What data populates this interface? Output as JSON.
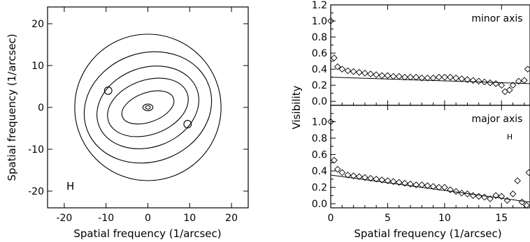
{
  "chart_data": [
    {
      "type": "contour",
      "xlabel": "Spatial frequency (1/arcsec)",
      "ylabel": "Spatial frequency (1/arcsec)",
      "xlim": [
        -24,
        24
      ],
      "ylim": [
        -24,
        24
      ],
      "xticks": [
        -20,
        -10,
        0,
        10,
        20
      ],
      "yticks": [
        -20,
        -10,
        0,
        10,
        20
      ],
      "annotation": "H",
      "contours": [
        {
          "shape": "ellipse",
          "cx": 0,
          "cy": 0,
          "rx": 17.5,
          "ry": 17.5,
          "angle_deg": 0
        },
        {
          "shape": "ellipse",
          "cx": 0,
          "cy": 0,
          "rx": 15.5,
          "ry": 13.0,
          "angle_deg": -20
        },
        {
          "shape": "ellipse",
          "cx": 0,
          "cy": 0,
          "rx": 12.5,
          "ry": 9.5,
          "angle_deg": -20
        },
        {
          "shape": "ellipse",
          "cx": 0,
          "cy": 0,
          "rx": 10.0,
          "ry": 6.5,
          "angle_deg": -20
        },
        {
          "shape": "ellipse",
          "cx": 0,
          "cy": 0,
          "rx": 6.5,
          "ry": 3.5,
          "angle_deg": -20
        },
        {
          "shape": "ellipse",
          "cx": 0,
          "cy": 0,
          "rx": 1.2,
          "ry": 0.8,
          "angle_deg": 0
        },
        {
          "shape": "ellipse",
          "cx": 0,
          "cy": 0,
          "rx": 0.6,
          "ry": 0.4,
          "angle_deg": 0
        },
        {
          "shape": "ellipse",
          "cx": -9.5,
          "cy": 4,
          "rx": 0.9,
          "ry": 0.9,
          "angle_deg": 0
        },
        {
          "shape": "ellipse",
          "cx": 9.5,
          "cy": -4,
          "rx": 0.9,
          "ry": 0.9,
          "angle_deg": 0
        }
      ]
    },
    {
      "type": "scatter",
      "title": "minor axis",
      "ylabel": "Visibility",
      "xlim": [
        0,
        17.5
      ],
      "ylim": [
        -0.05,
        1.2
      ],
      "yticks": [
        0.0,
        0.2,
        0.4,
        0.6,
        0.8,
        1.0,
        1.2
      ],
      "points": {
        "x": [
          0,
          0.3,
          0.6,
          1.0,
          1.5,
          2.0,
          2.5,
          3.0,
          3.5,
          4.0,
          4.5,
          5.0,
          5.5,
          6.0,
          6.5,
          7.0,
          7.5,
          8.0,
          8.5,
          9.0,
          9.5,
          10.0,
          10.5,
          11.0,
          11.5,
          12.0,
          12.5,
          13.0,
          13.5,
          14.0,
          14.5,
          15.0,
          15.3,
          15.7,
          16.0,
          16.5,
          17.0,
          17.3
        ],
        "y": [
          1.0,
          0.54,
          0.43,
          0.4,
          0.38,
          0.37,
          0.36,
          0.35,
          0.34,
          0.33,
          0.32,
          0.32,
          0.31,
          0.31,
          0.3,
          0.3,
          0.3,
          0.29,
          0.29,
          0.29,
          0.3,
          0.3,
          0.3,
          0.29,
          0.28,
          0.27,
          0.26,
          0.25,
          0.24,
          0.23,
          0.22,
          0.2,
          0.12,
          0.14,
          0.2,
          0.25,
          0.26,
          0.4
        ]
      },
      "fit_line": {
        "x": [
          0,
          17.5
        ],
        "y": [
          0.3,
          0.22
        ]
      }
    },
    {
      "type": "scatter",
      "title": "major axis",
      "annotation": "H",
      "xlabel": "Spatial frequency (1/arcsec)",
      "ylabel": "Visibility",
      "xlim": [
        0,
        17.5
      ],
      "ylim": [
        -0.05,
        1.2
      ],
      "xticks": [
        0,
        5,
        10,
        15
      ],
      "yticks": [
        0.0,
        0.2,
        0.4,
        0.6,
        0.8,
        1.0
      ],
      "points": {
        "x": [
          0,
          0.3,
          0.6,
          1.0,
          1.5,
          2.0,
          2.5,
          3.0,
          3.5,
          4.0,
          4.5,
          5.0,
          5.5,
          6.0,
          6.5,
          7.0,
          7.5,
          8.0,
          8.5,
          9.0,
          9.5,
          10.0,
          10.5,
          11.0,
          11.5,
          12.0,
          12.5,
          13.0,
          13.5,
          14.0,
          14.5,
          15.0,
          15.5,
          16.0,
          16.4,
          16.8,
          17.2,
          17.4
        ],
        "y": [
          1.0,
          0.53,
          0.42,
          0.38,
          0.35,
          0.34,
          0.33,
          0.32,
          0.31,
          0.3,
          0.29,
          0.28,
          0.27,
          0.26,
          0.25,
          0.24,
          0.23,
          0.23,
          0.22,
          0.21,
          0.2,
          0.2,
          0.17,
          0.15,
          0.13,
          0.12,
          0.1,
          0.09,
          0.08,
          0.06,
          0.1,
          0.09,
          0.04,
          0.12,
          0.28,
          0.02,
          -0.02,
          0.38
        ]
      },
      "fit_line": {
        "x": [
          0,
          17.5
        ],
        "y": [
          0.35,
          0.02
        ]
      }
    }
  ]
}
